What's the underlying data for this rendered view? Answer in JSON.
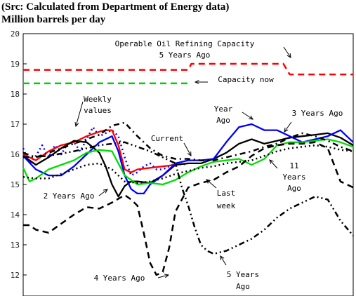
{
  "header": {
    "source": "(Src: Calculated from Department of Energy data)",
    "units": "Million barrels per day"
  },
  "chart_data": {
    "type": "line",
    "title": "",
    "xlabel": "",
    "ylabel": "Million barrels per day",
    "ylim": [
      12,
      20
    ],
    "xlim": [
      0,
      52
    ],
    "grid": false,
    "y_ticks": [
      "12",
      "13",
      "14",
      "15",
      "16",
      "17",
      "18",
      "19",
      "20"
    ],
    "series": [
      {
        "name": "Operable Oil Refining Capacity 5 Years Ago",
        "color": "#ff0000",
        "dash": "dash",
        "x": [
          0,
          4,
          26,
          26.5,
          41,
          42,
          52
        ],
        "y": [
          18.8,
          18.8,
          18.8,
          19.0,
          19.0,
          18.65,
          18.65
        ]
      },
      {
        "name": "Capacity now",
        "color": "#00cc00",
        "dash": "dash",
        "x": [
          0,
          26
        ],
        "y": [
          18.35,
          18.35
        ]
      },
      {
        "name": "Weekly values",
        "color": "#0000ff",
        "dash": "dot",
        "x": [
          0,
          1,
          2,
          3,
          4,
          5,
          6,
          7,
          8,
          9,
          10,
          11,
          12,
          13,
          14,
          15,
          16,
          17,
          18,
          19,
          20,
          21,
          22,
          23,
          24,
          25,
          26
        ],
        "y": [
          16.2,
          15.7,
          15.95,
          16.3,
          15.9,
          16.3,
          16.0,
          16.35,
          16.4,
          16.1,
          16.5,
          16.9,
          16.6,
          16.7,
          16.8,
          16.6,
          15.9,
          15.3,
          15.4,
          15.6,
          15.7,
          15.5,
          15.5,
          15.6,
          15.7,
          15.65,
          15.7
        ]
      },
      {
        "name": "Current",
        "color": "#ff0000",
        "dash": "solid",
        "x": [
          0,
          2,
          4,
          6,
          8,
          10,
          12,
          13,
          14,
          15,
          16,
          17,
          18,
          20,
          22,
          24,
          26
        ],
        "y": [
          16.0,
          15.8,
          16.1,
          16.3,
          16.4,
          16.6,
          16.75,
          16.8,
          16.8,
          16.3,
          15.5,
          15.4,
          15.5,
          15.55,
          15.6,
          15.65,
          15.7
        ]
      },
      {
        "name": "Last week",
        "color": "#000000",
        "dash": "solid",
        "x": [
          0,
          2,
          4,
          6,
          8,
          10,
          12,
          13,
          14,
          15,
          16,
          17,
          18,
          20,
          22,
          24,
          26,
          28,
          30,
          32,
          34,
          36,
          38,
          40,
          42,
          44,
          46,
          48,
          50,
          52
        ],
        "y": [
          15.95,
          15.65,
          15.9,
          16.2,
          16.45,
          16.4,
          16.05,
          15.6,
          15.0,
          14.6,
          14.95,
          15.1,
          15.1,
          15.05,
          15.3,
          15.65,
          15.7,
          15.7,
          15.85,
          16.05,
          16.35,
          16.5,
          16.35,
          16.45,
          16.55,
          16.6,
          16.65,
          16.7,
          16.55,
          16.3
        ]
      },
      {
        "name": "Year Ago",
        "color": "#0000ff",
        "dash": "solid",
        "x": [
          0,
          2,
          4,
          6,
          8,
          10,
          12,
          14,
          15,
          16,
          17,
          18,
          19,
          20,
          22,
          24,
          26,
          28,
          30,
          32,
          34,
          36,
          38,
          40,
          42,
          44,
          46,
          48,
          50,
          52
        ],
        "y": [
          15.95,
          15.5,
          15.3,
          15.3,
          15.6,
          16.0,
          16.4,
          16.6,
          16.1,
          15.3,
          14.85,
          14.7,
          14.7,
          15.0,
          15.3,
          15.7,
          15.8,
          15.8,
          15.85,
          16.4,
          16.9,
          17.0,
          16.8,
          16.8,
          16.6,
          16.4,
          16.5,
          16.6,
          16.8,
          16.4
        ]
      },
      {
        "name": "11 Years Ago",
        "color": "#00dd00",
        "dash": "solid",
        "x": [
          0,
          1,
          2,
          4,
          6,
          8,
          10,
          12,
          14,
          16,
          18,
          20,
          22,
          24,
          26,
          28,
          30,
          32,
          34,
          36,
          38,
          40,
          42,
          44,
          46,
          48,
          50,
          52
        ],
        "y": [
          15.55,
          15.1,
          15.2,
          15.5,
          15.65,
          15.8,
          16.05,
          16.15,
          16.1,
          15.3,
          15.0,
          15.05,
          15.0,
          15.15,
          15.4,
          15.6,
          15.75,
          15.8,
          15.85,
          15.65,
          15.85,
          16.3,
          16.4,
          16.4,
          16.45,
          16.5,
          16.4,
          16.25
        ]
      },
      {
        "name": "2 Years Ago",
        "color": "#000000",
        "dash": "dot",
        "x": [
          0,
          2,
          4,
          6,
          8,
          10,
          12,
          14,
          16,
          18,
          20,
          22,
          24,
          26,
          28,
          30,
          32,
          34,
          36,
          38,
          40,
          42,
          44,
          46,
          48,
          50,
          52
        ],
        "y": [
          15.25,
          15.2,
          15.2,
          15.35,
          15.5,
          15.65,
          15.7,
          15.5,
          15.1,
          15.05,
          15.1,
          15.2,
          15.35,
          15.45,
          15.55,
          15.6,
          15.7,
          15.75,
          15.8,
          15.95,
          16.1,
          16.2,
          16.25,
          16.3,
          16.25,
          16.15,
          16.1
        ]
      },
      {
        "name": "3 Years Ago",
        "color": "#000000",
        "dash": "dashdot",
        "x": [
          0,
          2,
          4,
          6,
          8,
          10,
          12,
          14,
          16,
          18,
          20,
          22,
          24,
          26,
          28,
          30,
          32,
          34,
          36,
          38,
          40,
          42,
          44,
          46,
          48,
          50,
          52
        ],
        "y": [
          16.05,
          15.9,
          16.05,
          16.2,
          16.35,
          16.5,
          16.65,
          16.95,
          17.05,
          16.6,
          16.2,
          15.95,
          15.85,
          15.85,
          15.8,
          15.8,
          15.9,
          16.0,
          16.1,
          16.25,
          16.35,
          16.55,
          16.7,
          16.6,
          16.45,
          16.25,
          16.1
        ]
      },
      {
        "name": "4 Years Ago",
        "color": "#000000",
        "dash": "dash",
        "x": [
          0,
          1,
          2,
          4,
          6,
          8,
          10,
          12,
          14,
          16,
          17,
          18,
          19,
          20,
          21,
          22,
          23,
          24,
          26,
          28,
          30,
          32,
          34,
          36,
          38,
          40,
          42,
          44,
          46,
          48,
          50,
          52
        ],
        "y": [
          13.65,
          13.65,
          13.5,
          13.4,
          13.7,
          14.0,
          14.25,
          14.2,
          14.4,
          14.65,
          14.5,
          14.3,
          13.4,
          12.4,
          12.0,
          12.1,
          12.9,
          14.1,
          14.9,
          15.05,
          15.15,
          15.4,
          15.6,
          15.95,
          16.2,
          16.3,
          16.35,
          16.35,
          16.4,
          16.2,
          15.1,
          14.9
        ]
      },
      {
        "name": "5 Years Ago",
        "color": "#000000",
        "dash": "dashdotdot",
        "x": [
          0,
          4,
          8,
          12,
          16,
          20,
          22,
          24,
          25,
          26,
          27,
          28,
          29,
          30,
          32,
          34,
          36,
          38,
          40,
          42,
          44,
          46,
          48,
          50,
          52
        ],
        "y": [
          15.9,
          15.95,
          16.1,
          16.3,
          16.4,
          16.1,
          15.9,
          15.7,
          14.9,
          14.3,
          13.6,
          13.0,
          12.8,
          12.7,
          12.8,
          13.0,
          13.2,
          13.5,
          13.9,
          14.2,
          14.4,
          14.6,
          14.5,
          13.8,
          13.3
        ]
      }
    ],
    "annotations": [
      {
        "text": "Operable Oil Refining Capacity"
      },
      {
        "text": "5 Years Ago"
      },
      {
        "text": "Capacity now"
      },
      {
        "text": "Weekly"
      },
      {
        "text": "values"
      },
      {
        "text": "Year"
      },
      {
        "text": "Ago"
      },
      {
        "text": "3 Years Ago"
      },
      {
        "text": "Current"
      },
      {
        "text": "11"
      },
      {
        "text": "Years"
      },
      {
        "text": "Ago"
      },
      {
        "text": "2 Years Ago"
      },
      {
        "text": "Last"
      },
      {
        "text": "week"
      },
      {
        "text": "4 Years Ago"
      },
      {
        "text": "5 Years"
      },
      {
        "text": "Ago"
      }
    ]
  }
}
